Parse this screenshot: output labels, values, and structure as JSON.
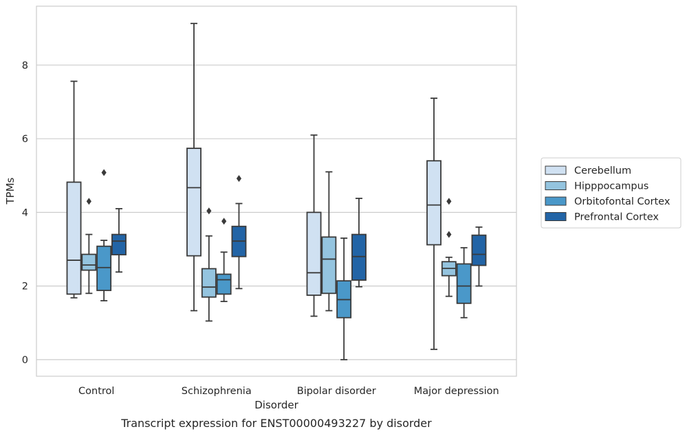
{
  "caption": "Transcript expression for ENST00000493227 by disorder",
  "chart_data": {
    "type": "box",
    "xlabel": "Disorder",
    "ylabel": "TPMs",
    "ylim": [
      -0.45,
      9.6
    ],
    "yticks": [
      0,
      2,
      4,
      6,
      8
    ],
    "grid": "horizontal",
    "legend_position": "right",
    "categories": [
      "Control",
      "Schizophrenia",
      "Bipolar disorder",
      "Major depression"
    ],
    "series": [
      {
        "name": "Cerebellum",
        "color": "#d0e1f2",
        "boxes": [
          {
            "whislo": 1.68,
            "q1": 1.78,
            "med": 2.7,
            "q3": 4.82,
            "whishi": 7.56,
            "fliers": []
          },
          {
            "whislo": 1.33,
            "q1": 2.82,
            "med": 4.67,
            "q3": 5.74,
            "whishi": 9.13,
            "fliers": []
          },
          {
            "whislo": 1.18,
            "q1": 1.75,
            "med": 2.36,
            "q3": 4.0,
            "whishi": 6.1,
            "fliers": []
          },
          {
            "whislo": 0.28,
            "q1": 3.12,
            "med": 4.2,
            "q3": 5.4,
            "whishi": 7.1,
            "fliers": []
          }
        ]
      },
      {
        "name": "Hipppocampus",
        "color": "#94c4df",
        "boxes": [
          {
            "whislo": 1.8,
            "q1": 2.43,
            "med": 2.57,
            "q3": 2.86,
            "whishi": 3.4,
            "fliers": [
              4.3
            ]
          },
          {
            "whislo": 1.05,
            "q1": 1.7,
            "med": 1.97,
            "q3": 2.47,
            "whishi": 3.36,
            "fliers": [
              4.04
            ]
          },
          {
            "whislo": 1.33,
            "q1": 1.8,
            "med": 2.73,
            "q3": 3.33,
            "whishi": 5.1,
            "fliers": []
          },
          {
            "whislo": 1.72,
            "q1": 2.28,
            "med": 2.48,
            "q3": 2.66,
            "whishi": 2.78,
            "fliers": [
              4.3,
              3.4
            ]
          }
        ]
      },
      {
        "name": "Orbitofontal Cortex",
        "color": "#4a98c9",
        "boxes": [
          {
            "whislo": 1.6,
            "q1": 1.88,
            "med": 2.5,
            "q3": 3.08,
            "whishi": 3.24,
            "fliers": [
              5.08
            ]
          },
          {
            "whislo": 1.58,
            "q1": 1.78,
            "med": 2.17,
            "q3": 2.32,
            "whishi": 2.92,
            "fliers": [
              3.76
            ]
          },
          {
            "whislo": 0.0,
            "q1": 1.14,
            "med": 1.63,
            "q3": 2.14,
            "whishi": 3.3,
            "fliers": []
          },
          {
            "whislo": 1.14,
            "q1": 1.53,
            "med": 2.0,
            "q3": 2.6,
            "whishi": 3.04,
            "fliers": []
          }
        ]
      },
      {
        "name": "Prefrontal Cortex",
        "color": "#2264a6",
        "boxes": [
          {
            "whislo": 2.38,
            "q1": 2.85,
            "med": 3.22,
            "q3": 3.4,
            "whishi": 4.1,
            "fliers": []
          },
          {
            "whislo": 1.93,
            "q1": 2.8,
            "med": 3.22,
            "q3": 3.62,
            "whishi": 4.24,
            "fliers": [
              4.92
            ]
          },
          {
            "whislo": 1.98,
            "q1": 2.16,
            "med": 2.8,
            "q3": 3.4,
            "whishi": 4.38,
            "fliers": []
          },
          {
            "whislo": 2.0,
            "q1": 2.56,
            "med": 2.86,
            "q3": 3.38,
            "whishi": 3.6,
            "fliers": []
          }
        ]
      }
    ]
  }
}
